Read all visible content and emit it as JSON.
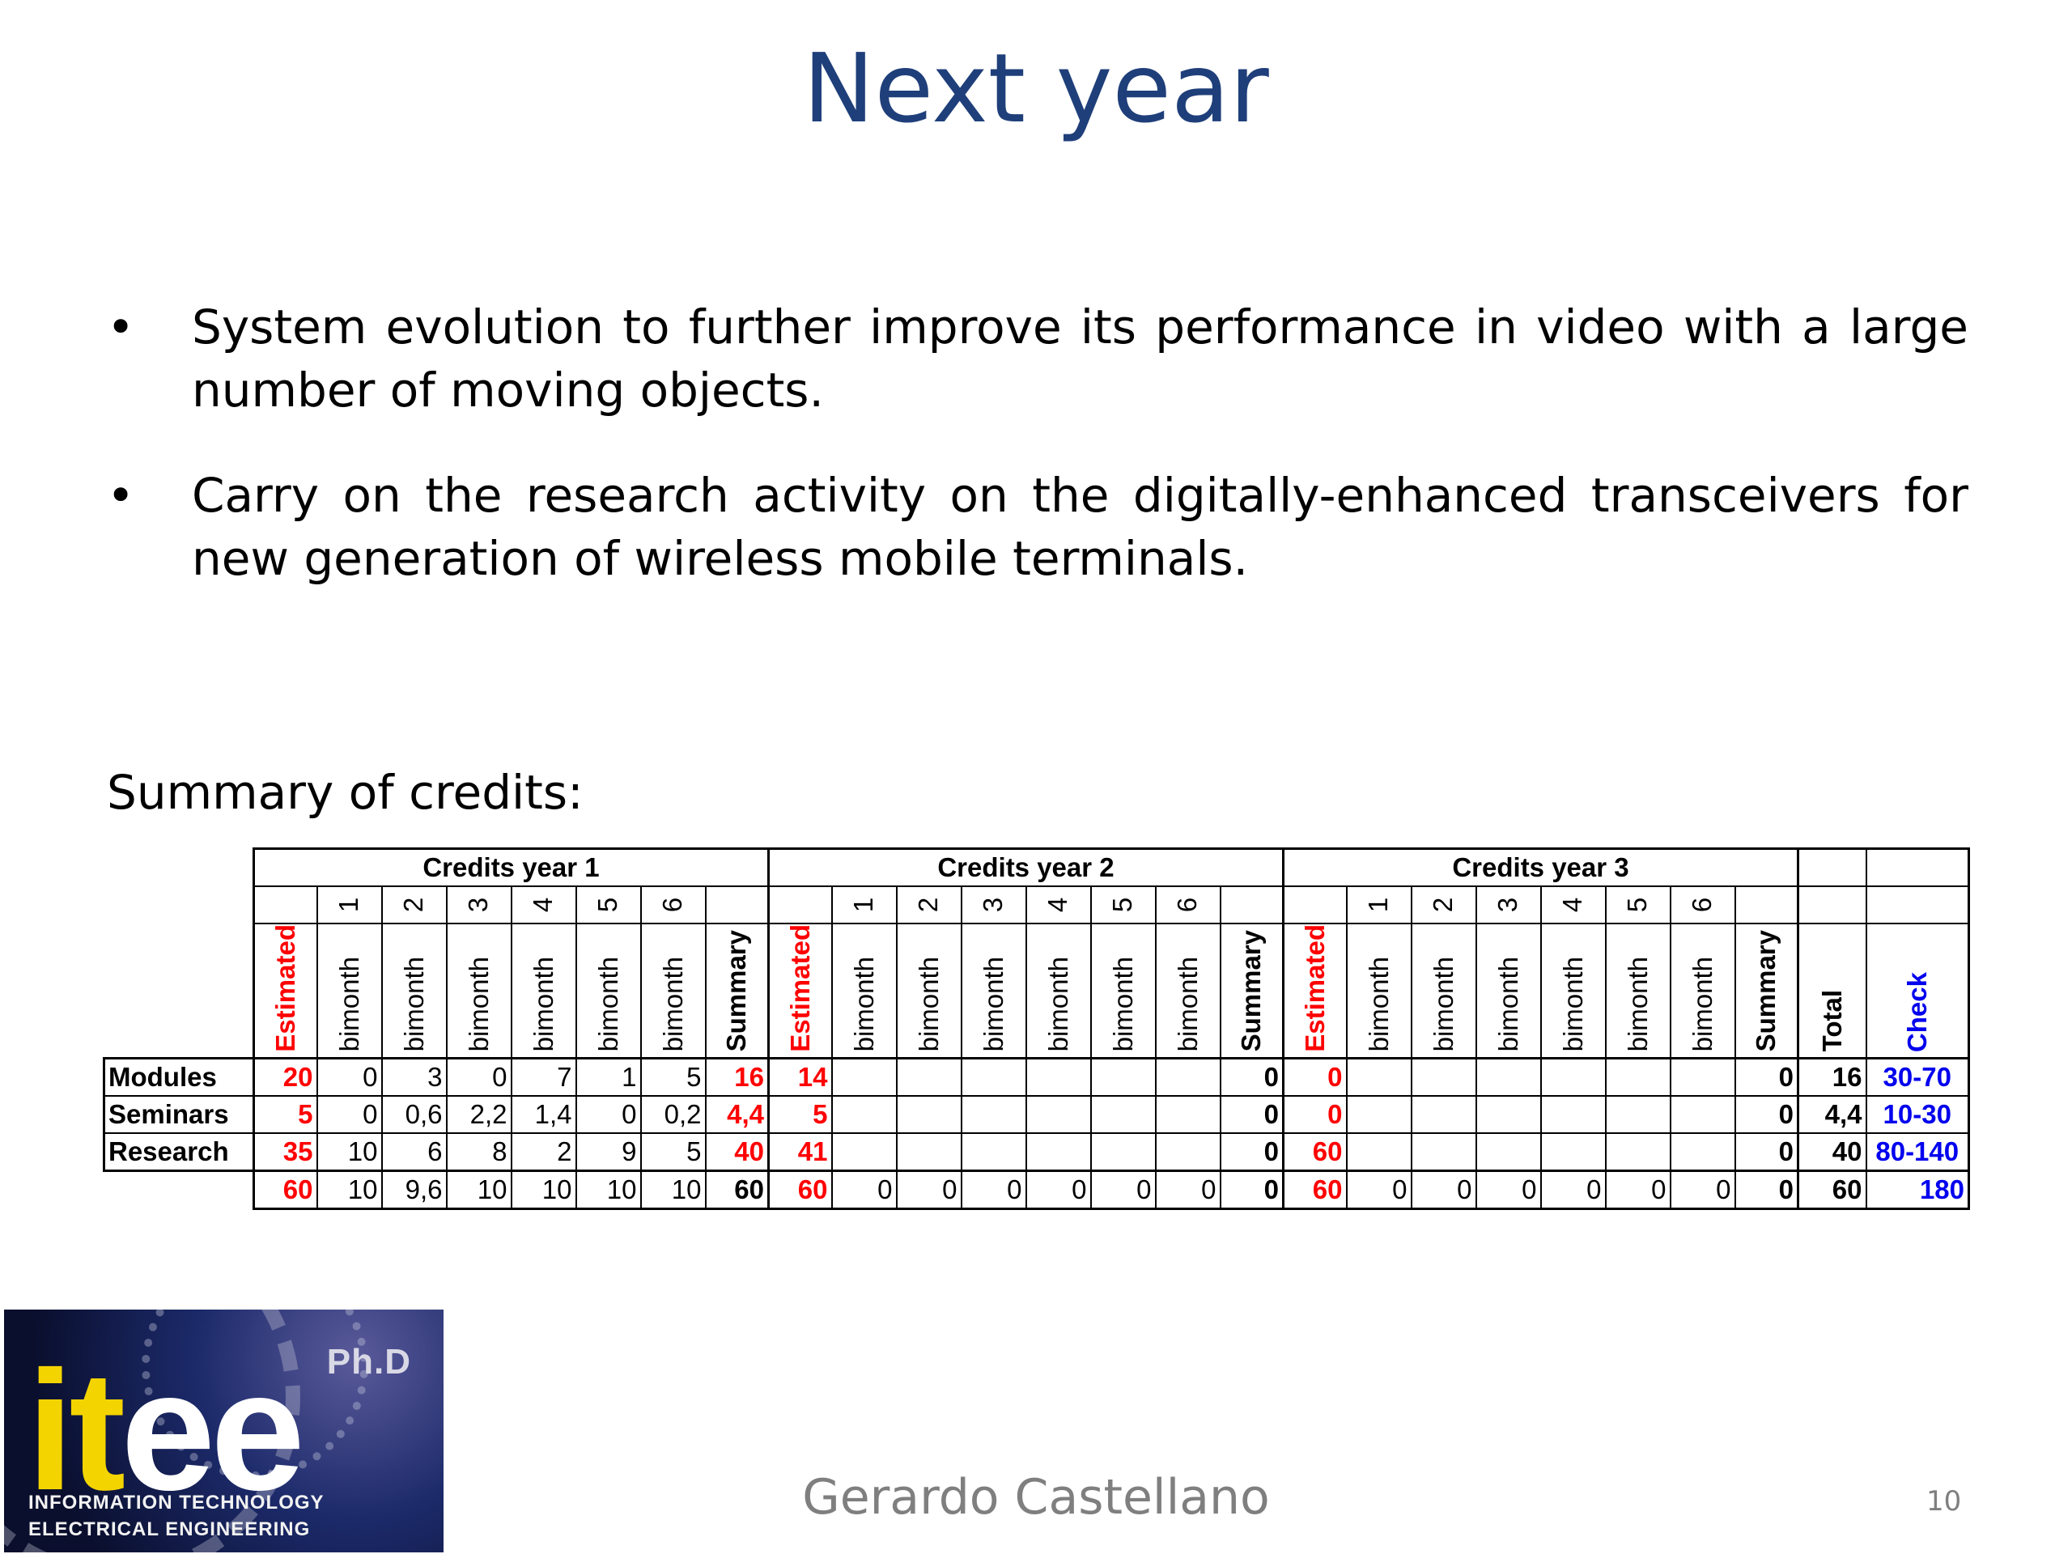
{
  "slide": {
    "title": "Next year",
    "bullets": [
      {
        "marker": "•",
        "text": "System evolution to further improve its performance in video with a large number of moving objects."
      },
      {
        "marker": "•",
        "text": "Carry on the research activity on the digitally-enhanced transceivers for new generation of wireless mobile terminals."
      }
    ],
    "summary_heading": "Summary of credits:",
    "footer_author": "Gerardo Castellano",
    "page_number": "10"
  },
  "logo": {
    "word": [
      "i",
      "t",
      "e",
      "e"
    ],
    "phd": "Ph.D",
    "line1": "INFORMATION TECHNOLOGY",
    "line2": "ELECTRICAL ENGINEERING"
  },
  "table": {
    "year_headers": [
      "Credits year 1",
      "Credits year 2",
      "Credits year 3"
    ],
    "bimonth_numbers": [
      "1",
      "2",
      "3",
      "4",
      "5",
      "6"
    ],
    "col_labels": {
      "estimated": "Estimated",
      "bimonth": "bimonth",
      "summary": "Summary",
      "total": "Total",
      "check": "Check"
    },
    "rows": [
      {
        "label": "Modules",
        "y1": {
          "est": "20",
          "b": [
            "0",
            "3",
            "0",
            "7",
            "1",
            "5"
          ],
          "sum": "16"
        },
        "y2": {
          "est": "14",
          "b": [
            "",
            "",
            "",
            "",
            "",
            ""
          ],
          "sum": "0"
        },
        "y3": {
          "est": "0",
          "b": [
            "",
            "",
            "",
            "",
            "",
            ""
          ],
          "sum": "0"
        },
        "total": "16",
        "check": "30-70"
      },
      {
        "label": "Seminars",
        "y1": {
          "est": "5",
          "b": [
            "0",
            "0,6",
            "2,2",
            "1,4",
            "0",
            "0,2"
          ],
          "sum": "4,4"
        },
        "y2": {
          "est": "5",
          "b": [
            "",
            "",
            "",
            "",
            "",
            ""
          ],
          "sum": "0"
        },
        "y3": {
          "est": "0",
          "b": [
            "",
            "",
            "",
            "",
            "",
            ""
          ],
          "sum": "0"
        },
        "total": "4,4",
        "check": "10-30"
      },
      {
        "label": "Research",
        "y1": {
          "est": "35",
          "b": [
            "10",
            "6",
            "8",
            "2",
            "9",
            "5"
          ],
          "sum": "40"
        },
        "y2": {
          "est": "41",
          "b": [
            "",
            "",
            "",
            "",
            "",
            ""
          ],
          "sum": "0"
        },
        "y3": {
          "est": "60",
          "b": [
            "",
            "",
            "",
            "",
            "",
            ""
          ],
          "sum": "0"
        },
        "total": "40",
        "check": "80-140"
      }
    ],
    "totals": {
      "y1": {
        "est": "60",
        "b": [
          "10",
          "9,6",
          "10",
          "10",
          "10",
          "10"
        ],
        "sum": "60"
      },
      "y2": {
        "est": "60",
        "b": [
          "0",
          "0",
          "0",
          "0",
          "0",
          "0"
        ],
        "sum": "0"
      },
      "y3": {
        "est": "60",
        "b": [
          "0",
          "0",
          "0",
          "0",
          "0",
          "0"
        ],
        "sum": "0"
      },
      "total": "60",
      "check": "180"
    }
  }
}
